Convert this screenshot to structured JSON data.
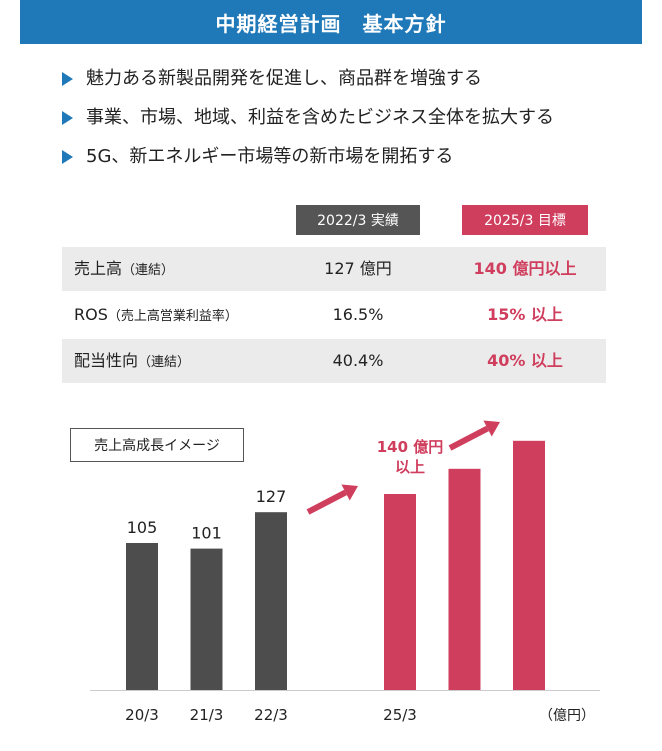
{
  "title": "中期経営計画　基本方針",
  "policies": [
    "魅力ある新製品開発を促進し、商品群を増強する",
    "事業、市場、地域、利益を含めたビジネス全体を拡大する",
    "5G、新エネルギー市場等の新市場を開拓する"
  ],
  "table": {
    "header_actual": "2022/3 実績",
    "header_target": "2025/3 目標",
    "rows": [
      {
        "label": "売上高",
        "sub": "（連結）",
        "actual": "127 億円",
        "target": "140 億円以上"
      },
      {
        "label": "ROS",
        "sub": "（売上高営業利益率）",
        "actual": "16.5%",
        "target": "15% 以上"
      },
      {
        "label": "配当性向",
        "sub": "（連結）",
        "actual": "40.4%",
        "target": "40% 以上"
      }
    ]
  },
  "colors": {
    "accent_blue": "#1f78b8",
    "actual_gray": "#4d4d4d",
    "target_red": "#d03e5e"
  },
  "chart_data": {
    "type": "bar",
    "title": "売上高成長イメージ",
    "unit": "（億円）",
    "categories": [
      "20/3",
      "21/3",
      "22/3",
      "",
      "25/3",
      "",
      ""
    ],
    "values": [
      105,
      101,
      127,
      null,
      140,
      158,
      178
    ],
    "data_labels": [
      "105",
      "101",
      "127",
      "",
      "",
      "",
      ""
    ],
    "kinds": [
      "actual",
      "actual",
      "actual",
      "gap",
      "target",
      "target",
      "target"
    ],
    "target_annotation": [
      "140 億円",
      "以上"
    ],
    "ylim": [
      0,
      180
    ]
  }
}
